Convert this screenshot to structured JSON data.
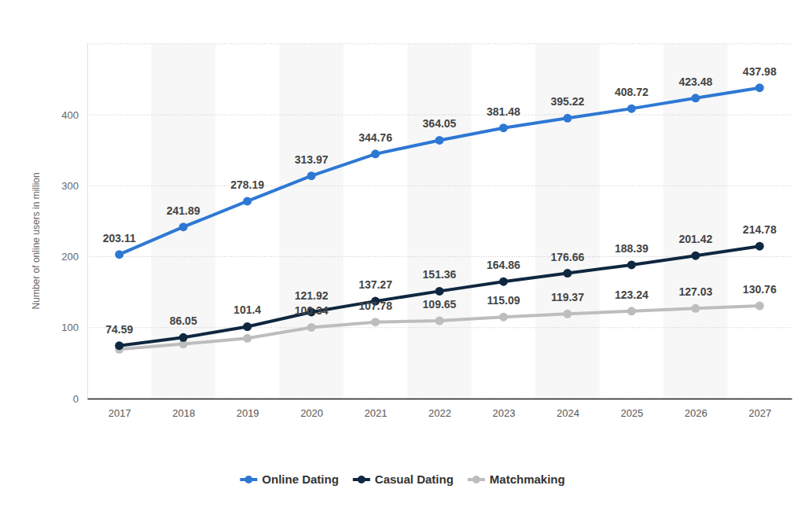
{
  "chart_data": {
    "type": "line",
    "y_label": "Number of online users in million",
    "categories": [
      "2017",
      "2018",
      "2019",
      "2020",
      "2021",
      "2022",
      "2023",
      "2024",
      "2025",
      "2026",
      "2027"
    ],
    "series": [
      {
        "name": "Online Dating",
        "color": "#2e78d4",
        "values": [
          203.11,
          241.89,
          278.19,
          313.97,
          344.76,
          364.05,
          381.48,
          395.22,
          408.72,
          423.48,
          437.98
        ]
      },
      {
        "name": "Casual Dating",
        "color": "#0f2740",
        "values": [
          74.59,
          86.05,
          101.4,
          121.92,
          137.27,
          151.36,
          164.86,
          176.66,
          188.39,
          201.42,
          214.78
        ]
      },
      {
        "name": "Matchmaking",
        "color": "#bdbdbd",
        "values": [
          69.5,
          77,
          85,
          100.34,
          107.78,
          109.65,
          115.09,
          119.37,
          123.24,
          127.03,
          130.76
        ],
        "value_labels": [
          null,
          null,
          null,
          "100.34",
          "107.78",
          "109.65",
          "115.09",
          "119.37",
          "123.24",
          "127.03",
          "130.76"
        ]
      }
    ],
    "ylim": [
      0,
      500
    ],
    "yticks": [
      0,
      100,
      200,
      300,
      400
    ],
    "grid": true,
    "marker": "circle",
    "data_labels": true,
    "legend": "bottom"
  }
}
